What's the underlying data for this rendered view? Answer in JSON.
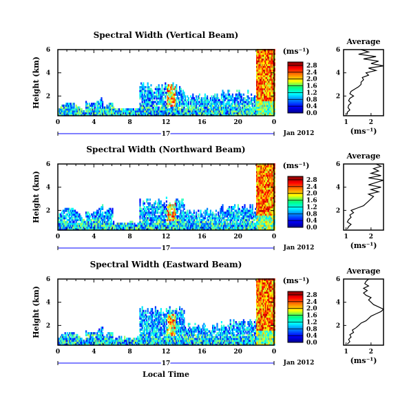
{
  "figure": {
    "xlabel": "Local Time",
    "date_label": "Jan 2012",
    "day_label": "17",
    "colorbar_unit": "(ms⁻¹)",
    "avg_title": "Average",
    "avg_xlabel": "(ms⁻¹)",
    "ylabel": "Height (km)"
  },
  "chart_data": [
    {
      "type": "heatmap",
      "title": "Spectral Width (Vertical Beam)",
      "xlabel": "Local Time",
      "ylabel": "Height (km)",
      "x_ticks": [
        "0",
        "4",
        "8",
        "12",
        "16",
        "20",
        "0"
      ],
      "xlim": [
        0,
        24
      ],
      "y_ticks": [
        "2",
        "4",
        "6"
      ],
      "ylim": [
        0.3,
        6
      ],
      "colorbar": {
        "ticks": [
          "0.0",
          "0.4",
          "0.8",
          "1.2",
          "1.6",
          "2.0",
          "2.4",
          "2.8"
        ],
        "range": [
          0,
          3.0
        ]
      },
      "average_profile": {
        "title": "Average",
        "xlabel": "(ms⁻¹)",
        "x_ticks": [
          "1",
          "2"
        ],
        "xlim": [
          0.9,
          2.5
        ],
        "y_ticks": [
          "2",
          "4",
          "6"
        ],
        "ylim": [
          0.3,
          6
        ],
        "heights": [
          0.4,
          0.6,
          0.8,
          1.0,
          1.2,
          1.4,
          1.6,
          1.8,
          2.0,
          2.2,
          2.4,
          2.6,
          2.8,
          3.0,
          3.2,
          3.4,
          3.6,
          3.8,
          4.0,
          4.2,
          4.4,
          4.6,
          4.8,
          5.0,
          5.2,
          5.4,
          5.6,
          5.8,
          6.0
        ],
        "values": [
          1.05,
          1.05,
          1.15,
          1.08,
          1.1,
          1.2,
          1.1,
          1.15,
          1.3,
          1.15,
          1.2,
          1.35,
          1.5,
          1.6,
          1.6,
          1.7,
          1.65,
          1.9,
          1.8,
          2.2,
          1.9,
          2.5,
          2.0,
          2.3,
          1.7,
          2.2,
          1.5,
          1.9,
          1.6
        ]
      }
    },
    {
      "type": "heatmap",
      "title": "Spectral Width (Northward Beam)",
      "xlabel": "Local Time",
      "ylabel": "Height (km)",
      "x_ticks": [
        "0",
        "4",
        "8",
        "12",
        "16",
        "20",
        "0"
      ],
      "xlim": [
        0,
        24
      ],
      "y_ticks": [
        "2",
        "4",
        "6"
      ],
      "ylim": [
        0.3,
        6
      ],
      "colorbar": {
        "ticks": [
          "0.0",
          "0.4",
          "0.8",
          "1.2",
          "1.6",
          "2.0",
          "2.4",
          "2.8"
        ],
        "range": [
          0,
          3.0
        ]
      },
      "average_profile": {
        "title": "Average",
        "xlabel": "(ms⁻¹)",
        "x_ticks": [
          "1",
          "2"
        ],
        "xlim": [
          0.9,
          2.5
        ],
        "y_ticks": [
          "2",
          "4",
          "6"
        ],
        "ylim": [
          0.3,
          6
        ],
        "heights": [
          0.4,
          0.6,
          0.8,
          1.0,
          1.2,
          1.4,
          1.6,
          1.8,
          2.0,
          2.2,
          2.4,
          2.6,
          2.8,
          3.0,
          3.2,
          3.4,
          3.6,
          3.8,
          4.0,
          4.2,
          4.4,
          4.6,
          4.8,
          5.0,
          5.2,
          5.4,
          5.6,
          5.8,
          6.0
        ],
        "values": [
          1.05,
          1.1,
          1.2,
          1.05,
          1.1,
          1.2,
          1.15,
          1.3,
          1.2,
          1.45,
          1.7,
          1.8,
          1.9,
          2.0,
          2.1,
          1.9,
          2.3,
          2.0,
          2.4,
          1.9,
          2.2,
          2.5,
          1.9,
          2.4,
          2.0,
          2.3,
          2.1,
          2.4,
          2.2
        ]
      }
    },
    {
      "type": "heatmap",
      "title": "Spectral Width (Eastward Beam)",
      "xlabel": "Local Time",
      "ylabel": "Height (km)",
      "x_ticks": [
        "0",
        "4",
        "8",
        "12",
        "16",
        "20",
        "0"
      ],
      "xlim": [
        0,
        24
      ],
      "y_ticks": [
        "2",
        "4",
        "6"
      ],
      "ylim": [
        0.3,
        6
      ],
      "colorbar": {
        "ticks": [
          "0.0",
          "0.4",
          "0.8",
          "1.2",
          "1.6",
          "2.0",
          "2.4",
          "2.8"
        ],
        "range": [
          0,
          3.0
        ]
      },
      "average_profile": {
        "title": "Average",
        "xlabel": "(ms⁻¹)",
        "x_ticks": [
          "1",
          "2"
        ],
        "xlim": [
          0.9,
          2.5
        ],
        "y_ticks": [
          "2",
          "4",
          "6"
        ],
        "ylim": [
          0.3,
          6
        ],
        "heights": [
          0.4,
          0.6,
          0.8,
          1.0,
          1.2,
          1.4,
          1.6,
          1.8,
          2.0,
          2.2,
          2.4,
          2.6,
          2.8,
          3.0,
          3.2,
          3.4,
          3.6,
          3.8,
          4.0,
          4.2,
          4.4,
          4.6,
          4.8,
          5.0,
          5.2,
          5.4,
          5.6,
          5.8,
          6.0
        ],
        "values": [
          1.05,
          1.15,
          1.1,
          1.2,
          1.15,
          1.3,
          1.25,
          1.4,
          1.5,
          1.6,
          1.8,
          1.9,
          2.0,
          2.2,
          2.4,
          2.5,
          2.3,
          2.1,
          2.0,
          1.9,
          2.0,
          1.8,
          1.7,
          1.85,
          1.7,
          1.9,
          1.75,
          1.8,
          1.9
        ]
      }
    }
  ]
}
